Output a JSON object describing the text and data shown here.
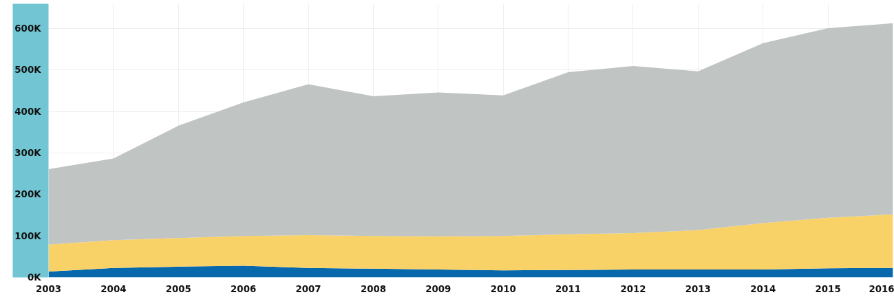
{
  "chart_data": {
    "type": "area",
    "stacked": true,
    "x": [
      2003,
      2004,
      2005,
      2006,
      2007,
      2008,
      2009,
      2010,
      2011,
      2012,
      2013,
      2014,
      2015,
      2016
    ],
    "series": [
      {
        "color": "#0868ac",
        "values": [
          14000,
          23000,
          26000,
          28000,
          23000,
          21000,
          19000,
          17000,
          18000,
          19000,
          19000,
          19000,
          22000,
          23000
        ]
      },
      {
        "color": "#f9d267",
        "values": [
          65000,
          67000,
          69000,
          72000,
          79000,
          79000,
          80000,
          83000,
          86000,
          88000,
          95000,
          112000,
          122000,
          129000
        ]
      },
      {
        "color": "#c0c4c3",
        "values": [
          182000,
          197000,
          271000,
          322000,
          364000,
          337000,
          347000,
          339000,
          391000,
          403000,
          383000,
          434000,
          457000,
          461000
        ]
      }
    ],
    "xlim": [
      2003,
      2016
    ],
    "xticks": [
      2003,
      2004,
      2005,
      2006,
      2007,
      2008,
      2009,
      2010,
      2011,
      2012,
      2013,
      2014,
      2015,
      2016
    ],
    "ylim": [
      0,
      660000
    ],
    "yticks": [
      {
        "value": 0,
        "label": "0K"
      },
      {
        "value": 100000,
        "label": "100K"
      },
      {
        "value": 200000,
        "label": "200K"
      },
      {
        "value": 300000,
        "label": "300K"
      },
      {
        "value": 400000,
        "label": "400K"
      },
      {
        "value": 500000,
        "label": "500K"
      },
      {
        "value": 600000,
        "label": "600K"
      }
    ],
    "grid": true
  }
}
